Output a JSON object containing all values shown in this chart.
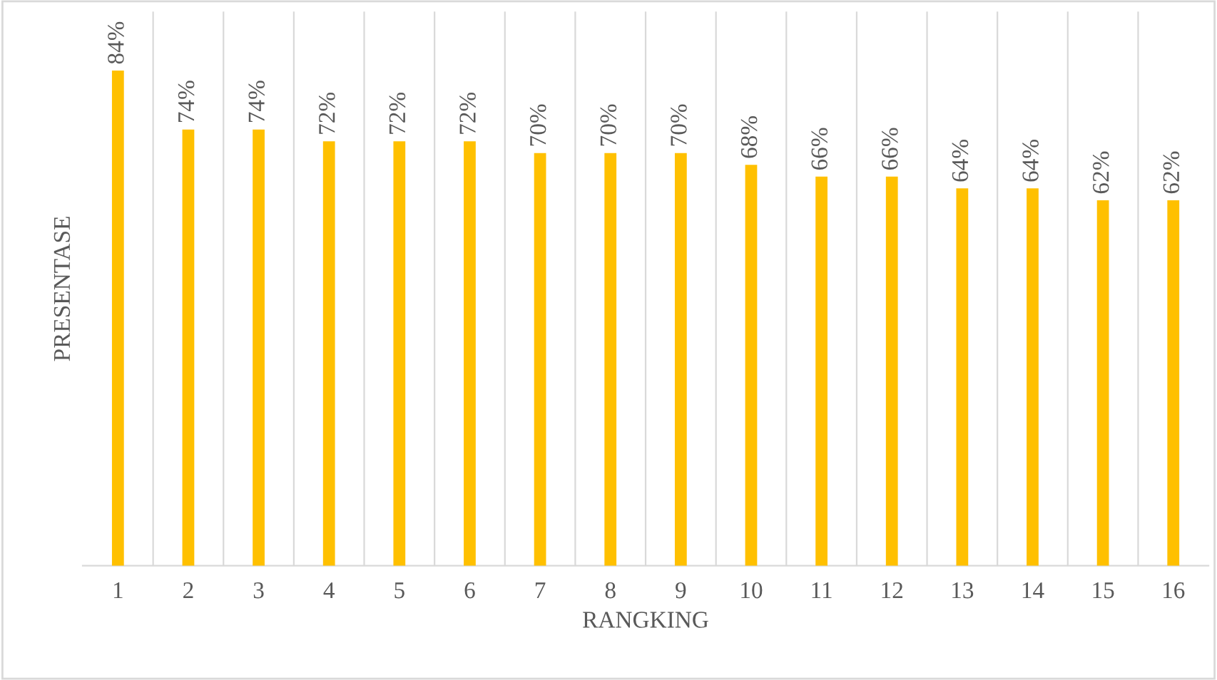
{
  "chart_data": {
    "type": "bar",
    "xlabel": "RANGKING",
    "ylabel": "PRESENTASE",
    "categories": [
      "1",
      "2",
      "3",
      "4",
      "5",
      "6",
      "7",
      "8",
      "9",
      "10",
      "11",
      "12",
      "13",
      "14",
      "15",
      "16"
    ],
    "values": [
      84,
      74,
      74,
      72,
      72,
      72,
      70,
      70,
      70,
      68,
      66,
      66,
      64,
      64,
      62,
      62
    ],
    "value_labels": [
      "84%",
      "74%",
      "74%",
      "72%",
      "72%",
      "72%",
      "70%",
      "70%",
      "70%",
      "68%",
      "66%",
      "66%",
      "64%",
      "64%",
      "62%",
      "62%"
    ],
    "color": "#ffc000",
    "ylim": [
      0,
      94
    ],
    "tick_labels": "x",
    "grid": "x",
    "legend": false
  }
}
